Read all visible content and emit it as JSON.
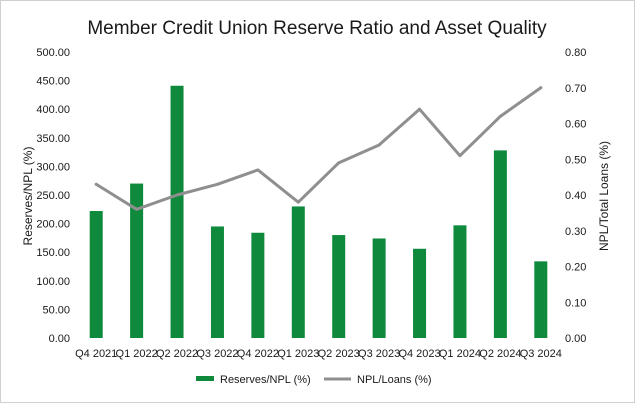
{
  "chart_data": {
    "type": "bar+line",
    "title": "Member Credit Union Reserve Ratio and Asset Quality",
    "categories": [
      "Q4 2021",
      "Q1 2022",
      "Q2 2022",
      "Q3 2022",
      "Q4 2022",
      "Q1 2023",
      "Q2 2023",
      "Q3 2023",
      "Q4 2023",
      "Q1 2024",
      "Q2 2024",
      "Q3 2024"
    ],
    "series": [
      {
        "name": "Reserves/NPL (%)",
        "type": "bar",
        "axis": "left",
        "color": "#0f8a3c",
        "values": [
          222,
          270,
          441,
          195,
          184,
          230,
          180,
          174,
          156,
          197,
          328,
          134
        ]
      },
      {
        "name": "NPL/Loans (%)",
        "type": "line",
        "axis": "right",
        "color": "#8f8f8f",
        "values": [
          0.43,
          0.36,
          0.4,
          0.43,
          0.47,
          0.38,
          0.49,
          0.54,
          0.64,
          0.51,
          0.62,
          0.7
        ]
      }
    ],
    "left_axis": {
      "label": "Reserves/NPL (%)",
      "ylim": [
        0,
        500
      ],
      "ticks": [
        "0.00",
        "50.00",
        "100.00",
        "150.00",
        "200.00",
        "250.00",
        "300.00",
        "350.00",
        "400.00",
        "450.00",
        "500.00"
      ]
    },
    "right_axis": {
      "label": "NPL/Total Loans (%)",
      "ylim": [
        0,
        0.8
      ],
      "ticks": [
        "0.00",
        "0.10",
        "0.20",
        "0.30",
        "0.40",
        "0.50",
        "0.60",
        "0.70",
        "0.80"
      ]
    },
    "grid": false,
    "legend_position": "bottom-center"
  }
}
